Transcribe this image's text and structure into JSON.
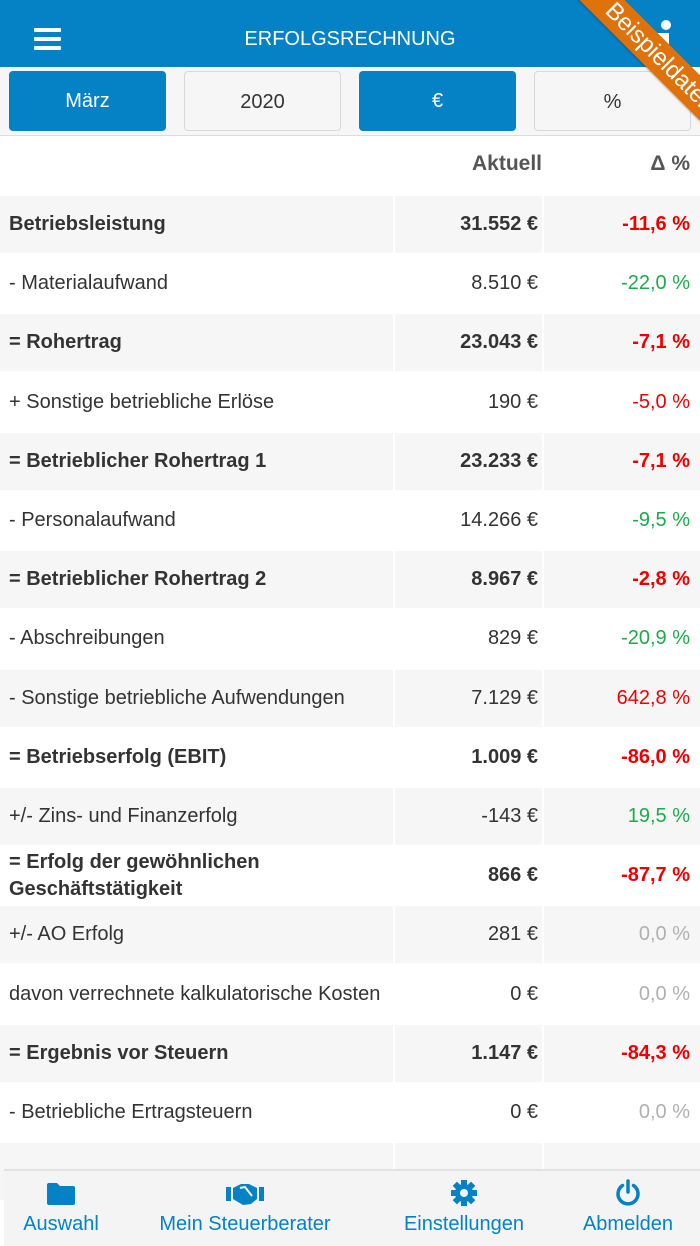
{
  "header": {
    "title": "ERFOLGSRECHNUNG",
    "menu_icon": "hamburger-icon",
    "info_icon": "info-icon",
    "ribbon": "Beispieldaten",
    "color": "#0581c6"
  },
  "toolbar": {
    "month": "März",
    "year": "2020",
    "currency": "€",
    "percent": "%"
  },
  "table": {
    "columns": {
      "current": "Aktuell",
      "delta": "Δ %"
    },
    "rows": [
      {
        "label": "Betriebsleistung",
        "value": "31.552 €",
        "delta": "-11,6 %",
        "bold": true,
        "delta_color": "red"
      },
      {
        "label": "- Materialaufwand",
        "value": "8.510 €",
        "delta": "-22,0 %",
        "bold": false,
        "delta_color": "green"
      },
      {
        "label": "= Rohertrag",
        "value": "23.043 €",
        "delta": "-7,1 %",
        "bold": true,
        "delta_color": "red"
      },
      {
        "label": "+ Sonstige betriebliche Erlöse",
        "value": "190 €",
        "delta": "-5,0 %",
        "bold": false,
        "delta_color": "red"
      },
      {
        "label": "= Betrieblicher Rohertrag 1",
        "value": "23.233 €",
        "delta": "-7,1 %",
        "bold": true,
        "delta_color": "red"
      },
      {
        "label": "- Personalaufwand",
        "value": "14.266 €",
        "delta": "-9,5 %",
        "bold": false,
        "delta_color": "green"
      },
      {
        "label": "= Betrieblicher Rohertrag 2",
        "value": "8.967 €",
        "delta": "-2,8 %",
        "bold": true,
        "delta_color": "red"
      },
      {
        "label": "- Abschreibungen",
        "value": "829 €",
        "delta": "-20,9 %",
        "bold": false,
        "delta_color": "green"
      },
      {
        "label": "- Sonstige betriebliche Aufwendungen",
        "value": "7.129 €",
        "delta": "642,8 %",
        "bold": false,
        "delta_color": "red"
      },
      {
        "label": "= Betriebserfolg (EBIT)",
        "value": "1.009 €",
        "delta": "-86,0 %",
        "bold": true,
        "delta_color": "red"
      },
      {
        "label": "+/- Zins- und Finanzerfolg",
        "value": "-143 €",
        "delta": "19,5 %",
        "bold": false,
        "delta_color": "green"
      },
      {
        "label": "= Erfolg der gewöhnlichen Geschäftstätigkeit",
        "value": "866 €",
        "delta": "-87,7 %",
        "bold": true,
        "delta_color": "red"
      },
      {
        "label": "+/- AO Erfolg",
        "value": "281 €",
        "delta": "0,0 %",
        "bold": false,
        "delta_color": "gray"
      },
      {
        "label": "davon verrechnete kalkulatorische Kosten",
        "value": "0 €",
        "delta": "0,0 %",
        "bold": false,
        "delta_color": "gray"
      },
      {
        "label": "= Ergebnis vor Steuern",
        "value": "1.147 €",
        "delta": "-84,3 %",
        "bold": true,
        "delta_color": "red"
      },
      {
        "label": "- Betriebliche Ertragsteuern",
        "value": "0 €",
        "delta": "0,0 %",
        "bold": false,
        "delta_color": "gray"
      },
      {
        "label": "",
        "value": "",
        "delta": "",
        "bold": false,
        "delta_color": "gray"
      }
    ]
  },
  "bottom_nav": {
    "items": [
      {
        "label": "Auswahl",
        "icon": "folder-icon"
      },
      {
        "label": "Mein Steuerberater",
        "icon": "handshake-icon"
      },
      {
        "label": "Einstellungen",
        "icon": "gear-icon"
      },
      {
        "label": "Abmelden",
        "icon": "power-icon"
      }
    ]
  },
  "colors": {
    "accent": "#0581c6",
    "negative": "#ef0000",
    "positive": "#1cab4a",
    "neutral": "#b0b0b0",
    "ribbon": "#e0720c"
  }
}
